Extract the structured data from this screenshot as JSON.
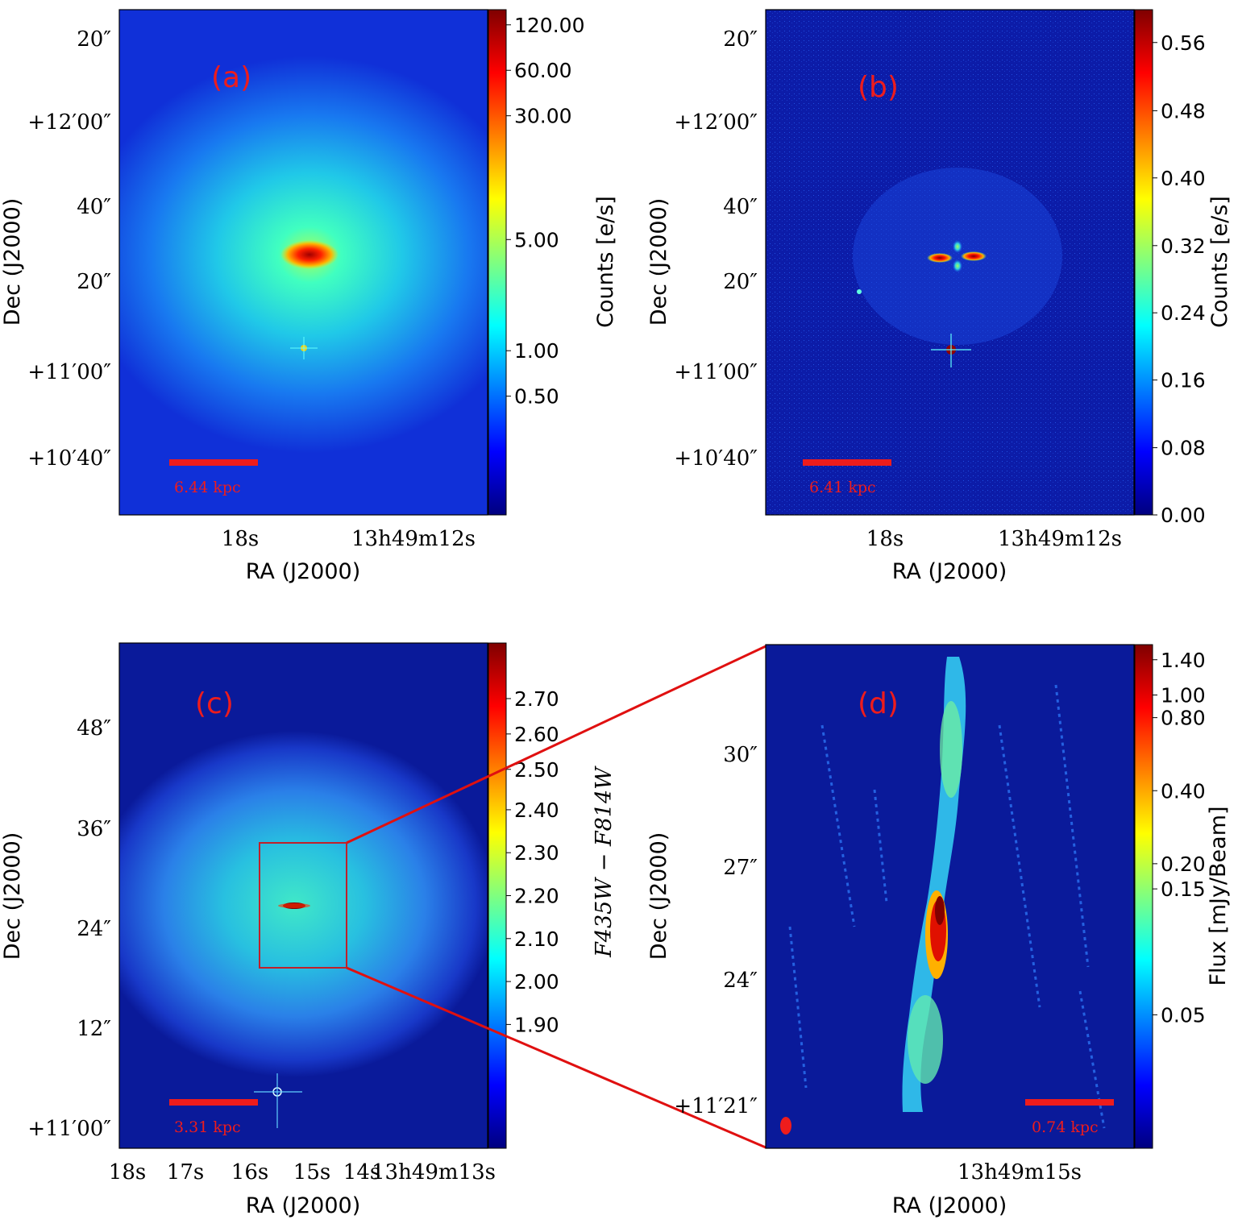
{
  "panels": [
    {
      "id": "a",
      "label": "(a)",
      "colormap": "jet",
      "colorbar": {
        "label": "Counts [e/s]",
        "ticks": [
          "120.00",
          "60.00",
          "30.00",
          "5.00",
          "1.00",
          "0.50"
        ],
        "tick_fractions": [
          0.03,
          0.12,
          0.21,
          0.455,
          0.675,
          0.765
        ]
      },
      "dec_ticks": [
        "20″",
        "+12′00″",
        "40″",
        "20″",
        "+11′00″",
        "+10′40″"
      ],
      "ra_ticks": [
        "18s",
        "13h49m12s"
      ],
      "xlabel": "RA (J2000)",
      "ylabel": "Dec (J2000)",
      "scalebar_label": "6.44 kpc"
    },
    {
      "id": "b",
      "label": "(b)",
      "colormap": "jet",
      "colorbar": {
        "label": "Counts [e/s]",
        "ticks": [
          "0.56",
          "0.48",
          "0.40",
          "0.32",
          "0.24",
          "0.16",
          "0.08",
          "0.00"
        ],
        "tick_fractions": [
          0.065,
          0.2,
          0.333,
          0.467,
          0.6,
          0.733,
          0.867,
          1.0
        ]
      },
      "dec_ticks": [
        "20″",
        "+12′00″",
        "40″",
        "20″",
        "+11′00″",
        "+10′40″"
      ],
      "ra_ticks": [
        "18s",
        "13h49m12s"
      ],
      "xlabel": "RA (J2000)",
      "ylabel": "Dec (J2000)",
      "scalebar_label": "6.41 kpc"
    },
    {
      "id": "c",
      "label": "(c)",
      "colormap": "jet",
      "colorbar": {
        "label": "F435W − F814W",
        "ticks": [
          "2.70",
          "2.60",
          "2.50",
          "2.40",
          "2.30",
          "2.20",
          "2.10",
          "2.00",
          "1.90"
        ],
        "tick_fractions": [
          0.11,
          0.18,
          0.25,
          0.33,
          0.415,
          0.5,
          0.585,
          0.67,
          0.755
        ]
      },
      "dec_ticks": [
        "48″",
        "36″",
        "24″",
        "12″",
        "+11′00″"
      ],
      "ra_ticks": [
        "18s",
        "17s",
        "16s",
        "15s",
        "14s",
        "13h49m13s"
      ],
      "xlabel": "RA (J2000)",
      "ylabel": "Dec (J2000)",
      "scalebar_label": "3.31 kpc"
    },
    {
      "id": "d",
      "label": "(d)",
      "colormap": "jet",
      "colorbar": {
        "label": "Flux [mJy/Beam]",
        "ticks": [
          "1.40",
          "1.00",
          "0.80",
          "0.40",
          "0.20",
          "0.15",
          "0.05"
        ],
        "tick_fractions": [
          0.03,
          0.1,
          0.145,
          0.29,
          0.435,
          0.485,
          0.735
        ]
      },
      "dec_ticks": [
        "30″",
        "27″",
        "24″",
        "+11′21″"
      ],
      "ra_ticks": [
        "13h49m15s"
      ],
      "xlabel": "RA (J2000)",
      "ylabel": "Dec (J2000)",
      "scalebar_label": "0.74 kpc"
    }
  ],
  "colors": {
    "label_red": "#ee1c1c",
    "zoom_box": "#c0202a",
    "connector": "#e01010",
    "background_blue": "#0a1a9a"
  }
}
